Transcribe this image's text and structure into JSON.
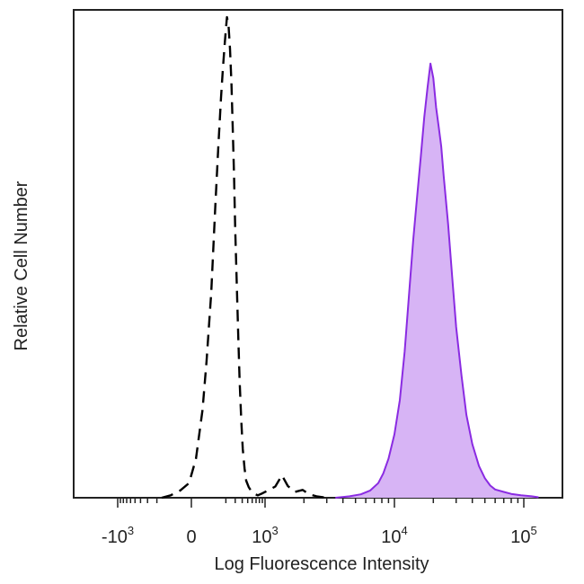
{
  "chart_data": {
    "type": "area",
    "xlabel": "Log Fluorescence Intensity",
    "ylabel": "Relative Cell Number",
    "x_scale": "biexponential",
    "xlim": [
      -1500,
      150000
    ],
    "ylim": [
      0,
      100
    ],
    "grid": false,
    "legend": "none",
    "x_ticks": [
      {
        "base": "-10",
        "exp": "3",
        "value": -1000
      },
      {
        "base": "0",
        "exp": "",
        "value": 0
      },
      {
        "base": "10",
        "exp": "3",
        "value": 1000
      },
      {
        "base": "10",
        "exp": "4",
        "value": 10000
      },
      {
        "base": "10",
        "exp": "5",
        "value": 100000
      }
    ],
    "series": [
      {
        "style": "dashed-outline",
        "color": "#000000",
        "points": [
          [
            -160,
            0
          ],
          [
            -100,
            0.5
          ],
          [
            -50,
            1.5
          ],
          [
            -10,
            3
          ],
          [
            20,
            8
          ],
          [
            50,
            18
          ],
          [
            70,
            28
          ],
          [
            95,
            42
          ],
          [
            120,
            60
          ],
          [
            140,
            72
          ],
          [
            160,
            82
          ],
          [
            175,
            88
          ],
          [
            190,
            93
          ],
          [
            200,
            96
          ],
          [
            210,
            98.5
          ],
          [
            225,
            97
          ],
          [
            240,
            92
          ],
          [
            255,
            85
          ],
          [
            270,
            76
          ],
          [
            285,
            66
          ],
          [
            300,
            55
          ],
          [
            320,
            44
          ],
          [
            340,
            33
          ],
          [
            360,
            24
          ],
          [
            385,
            16
          ],
          [
            410,
            10
          ],
          [
            440,
            6
          ],
          [
            470,
            3.5
          ],
          [
            520,
            2.2
          ],
          [
            580,
            1.3
          ],
          [
            650,
            0.8
          ],
          [
            750,
            0.5
          ],
          [
            900,
            0.9
          ],
          [
            1050,
            1.5
          ],
          [
            1200,
            2.3
          ],
          [
            1350,
            4.6
          ],
          [
            1500,
            2.4
          ],
          [
            1700,
            1.2
          ],
          [
            1950,
            1.6
          ],
          [
            2200,
            0.7
          ],
          [
            2500,
            0.3
          ],
          [
            3000,
            0
          ]
        ]
      },
      {
        "style": "filled",
        "color": "#8a2be2",
        "fill": "#d7b4f5",
        "points": [
          [
            3500,
            0
          ],
          [
            4500,
            0.3
          ],
          [
            5500,
            0.7
          ],
          [
            6500,
            1.5
          ],
          [
            7500,
            3
          ],
          [
            8200,
            5
          ],
          [
            9000,
            8
          ],
          [
            10000,
            13
          ],
          [
            11000,
            20
          ],
          [
            12000,
            30
          ],
          [
            13000,
            42
          ],
          [
            14000,
            53
          ],
          [
            15000,
            62
          ],
          [
            16000,
            70
          ],
          [
            17000,
            78
          ],
          [
            18000,
            84
          ],
          [
            19000,
            89
          ],
          [
            20000,
            86
          ],
          [
            21000,
            80
          ],
          [
            22000,
            76
          ],
          [
            23000,
            72
          ],
          [
            24000,
            66
          ],
          [
            26000,
            56
          ],
          [
            28000,
            45
          ],
          [
            30000,
            35
          ],
          [
            33000,
            25
          ],
          [
            36000,
            17
          ],
          [
            40000,
            11
          ],
          [
            45000,
            6.5
          ],
          [
            50000,
            4
          ],
          [
            55000,
            2.5
          ],
          [
            60000,
            1.7
          ],
          [
            70000,
            1.2
          ],
          [
            80000,
            0.8
          ],
          [
            95000,
            0.5
          ],
          [
            115000,
            0.3
          ],
          [
            130000,
            0.1
          ]
        ]
      }
    ]
  }
}
